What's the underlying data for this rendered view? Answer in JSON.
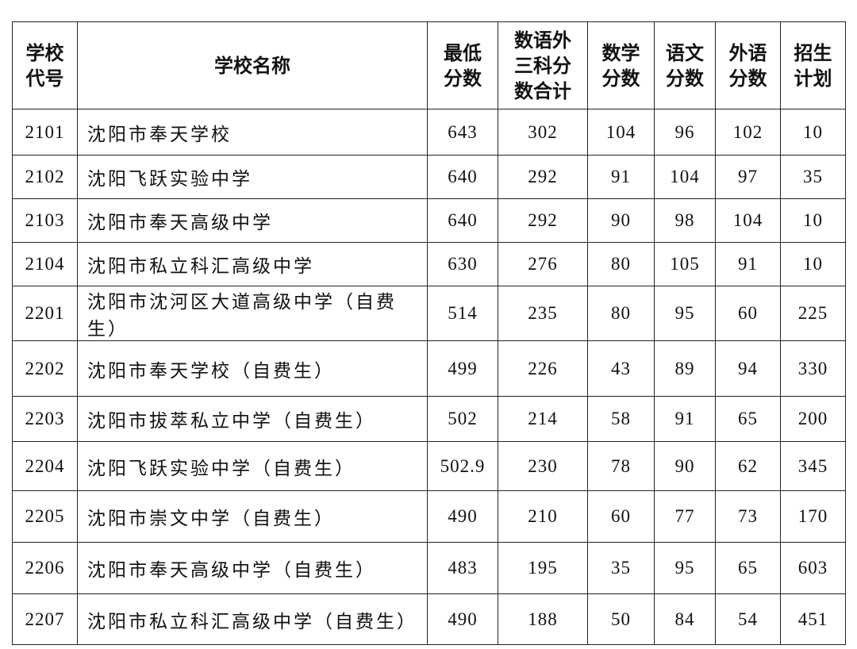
{
  "table": {
    "header": [
      "学校\n代号",
      "学校名称",
      "最低\n分数",
      "数语外\n三科分\n数合计",
      "数学\n分数",
      "语文\n分数",
      "外语\n分数",
      "招生\n计划"
    ],
    "rows": [
      [
        "2101",
        "沈阳市奉天学校",
        "643",
        "302",
        "104",
        "96",
        "102",
        "10"
      ],
      [
        "2102",
        "沈阳飞跃实验中学",
        "640",
        "292",
        "91",
        "104",
        "97",
        "35"
      ],
      [
        "2103",
        "沈阳市奉天高级中学",
        "640",
        "292",
        "90",
        "98",
        "104",
        "10"
      ],
      [
        "2104",
        "沈阳市私立科汇高级中学",
        "630",
        "276",
        "80",
        "105",
        "91",
        "10"
      ],
      [
        "2201",
        "沈阳市沈河区大道高级中学（自费生）",
        "514",
        "235",
        "80",
        "95",
        "60",
        "225"
      ],
      [
        "2202",
        "沈阳市奉天学校（自费生）",
        "499",
        "226",
        "43",
        "89",
        "94",
        "330"
      ],
      [
        "2203",
        "沈阳市拔萃私立中学（自费生）",
        "502",
        "214",
        "58",
        "91",
        "65",
        "200"
      ],
      [
        "2204",
        "沈阳飞跃实验中学（自费生）",
        "502.9",
        "230",
        "78",
        "90",
        "62",
        "345"
      ],
      [
        "2205",
        "沈阳市崇文中学（自费生）",
        "490",
        "210",
        "60",
        "77",
        "73",
        "170"
      ],
      [
        "2206",
        "沈阳市奉天高级中学（自费生）",
        "483",
        "195",
        "35",
        "95",
        "65",
        "603"
      ],
      [
        "2207",
        "沈阳市私立科汇高级中学（自费生）",
        "490",
        "188",
        "50",
        "84",
        "54",
        "451"
      ]
    ]
  }
}
